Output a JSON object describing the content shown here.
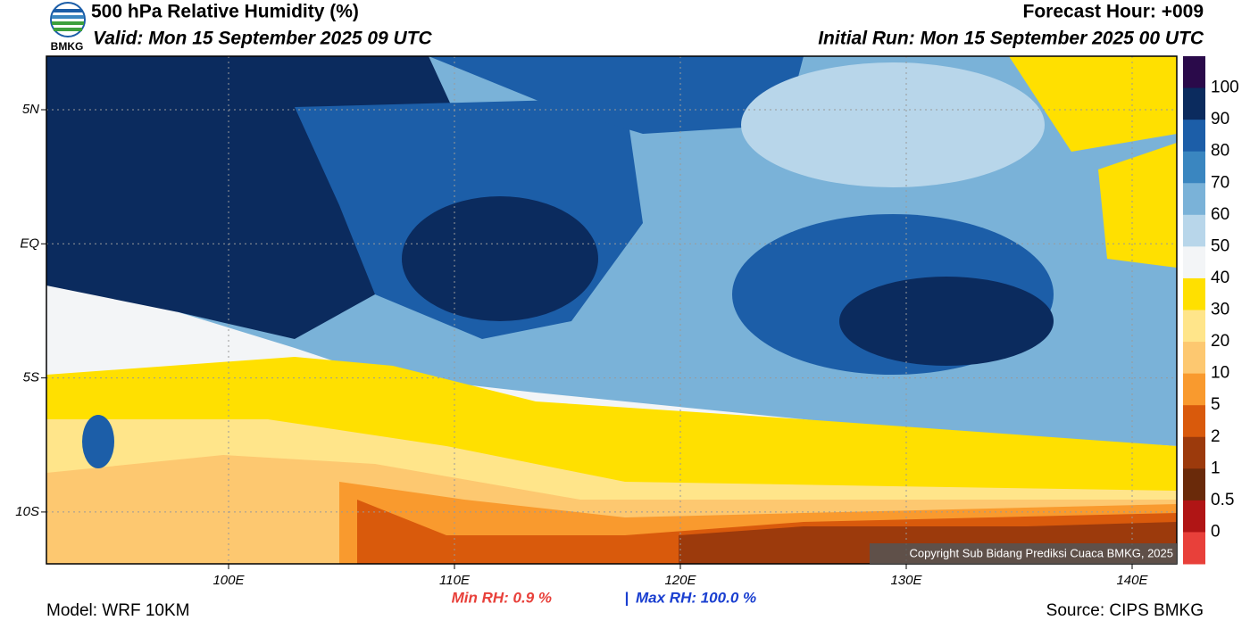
{
  "header": {
    "title": "500 hPa Relative Humidity (%)",
    "valid": "Valid: Mon 15 September 2025 09 UTC",
    "forecast_hour": "Forecast Hour: +009",
    "initial_run": "Initial Run: Mon 15 September 2025 00 UTC",
    "logo_text": "BMKG"
  },
  "map": {
    "lat_labels": [
      "5N",
      "EQ",
      "5S",
      "10S"
    ],
    "lon_labels": [
      "100E",
      "110E",
      "120E",
      "130E",
      "140E"
    ],
    "copyright": "Copyright Sub Bidang Prediksi Cuaca BMKG, 2025"
  },
  "colorbar": {
    "labels": [
      "100",
      "90",
      "80",
      "70",
      "60",
      "50",
      "40",
      "30",
      "20",
      "10",
      "5",
      "2",
      "1",
      "0.5",
      "0"
    ],
    "colors": [
      "#2a0a4a",
      "#0b2b5e",
      "#1c5ea8",
      "#3a86c0",
      "#7ab2d8",
      "#b8d6ea",
      "#f3f5f7",
      "#ffe000",
      "#ffe58a",
      "#fdc870",
      "#f99a2e",
      "#d95a0c",
      "#9c3a0c",
      "#6a2a0a",
      "#b01515",
      "#e8403a"
    ]
  },
  "footer": {
    "min_rh": "Min RH:   0.9 %",
    "separator": "|",
    "max_rh": "Max RH: 100.0 %",
    "model": "Model: WRF 10KM",
    "source": "Source: CIPS BMKG"
  }
}
